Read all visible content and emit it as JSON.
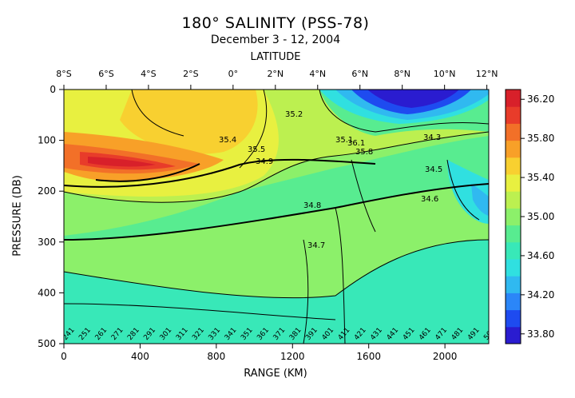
{
  "chart_data": {
    "type": "heatmap",
    "title": "180° SALINITY (PSS-78)",
    "subtitle": "December 3 - 12, 2004",
    "top_axis_label": "LATITUDE",
    "xlabel": "RANGE (KM)",
    "ylabel": "PRESSURE (DB)",
    "xlim": [
      0,
      2230
    ],
    "ylim": [
      0,
      500
    ],
    "x_ticks": [
      0,
      400,
      800,
      1200,
      1600,
      2000
    ],
    "y_ticks": [
      0,
      100,
      200,
      300,
      400,
      500
    ],
    "latitude_ticks": [
      {
        "label": "8°S",
        "km": 0
      },
      {
        "label": "6°S",
        "km": 222
      },
      {
        "label": "4°S",
        "km": 444
      },
      {
        "label": "2°S",
        "km": 666
      },
      {
        "label": "0°",
        "km": 888
      },
      {
        "label": "2°N",
        "km": 1110
      },
      {
        "label": "4°N",
        "km": 1332
      },
      {
        "label": "6°N",
        "km": 1554
      },
      {
        "label": "8°N",
        "km": 1776
      },
      {
        "label": "10°N",
        "km": 1998
      },
      {
        "label": "12°N",
        "km": 2220
      }
    ],
    "colorbar": {
      "min": 33.7,
      "max": 36.3,
      "tick_labels": [
        "36.20",
        "35.80",
        "35.40",
        "35.00",
        "34.60",
        "34.20",
        "33.80"
      ],
      "colors": [
        "#2a1cd0",
        "#1e4bf0",
        "#2b86f8",
        "#30b9f0",
        "#30e0e0",
        "#38e8b8",
        "#58ec90",
        "#8cf06a",
        "#bcf050",
        "#e8f040",
        "#f8d030",
        "#f8a028",
        "#f27028",
        "#e83c2a",
        "#d8202a"
      ]
    },
    "contour_labels": [
      "35.4",
      "35.2",
      "35.5",
      "34.9",
      "34.8",
      "34.7",
      "34.6",
      "34.5",
      "35.1",
      "35.8",
      "36.1",
      "34.3"
    ],
    "station_labels": [
      "241",
      "251",
      "261",
      "271",
      "281",
      "291",
      "301",
      "311",
      "321",
      "331",
      "341",
      "351",
      "361",
      "371",
      "381",
      "391",
      "401",
      "411",
      "421",
      "431",
      "441",
      "451",
      "461",
      "471",
      "481",
      "491",
      "501"
    ]
  }
}
